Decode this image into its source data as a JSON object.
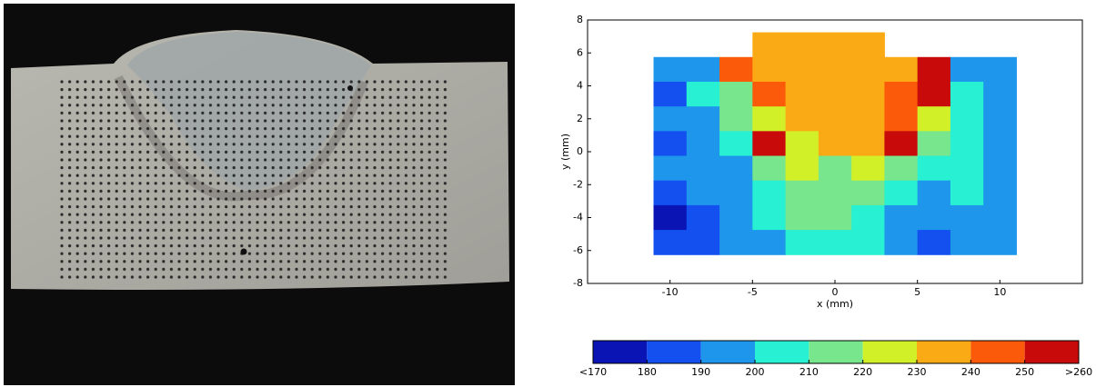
{
  "chart_data": {
    "type": "contour",
    "xlabel": "x (mm)",
    "ylabel": "y (mm)",
    "xlim": [
      -15,
      15
    ],
    "ylim": [
      -8,
      8
    ],
    "xticks": [
      -10,
      -5,
      0,
      5,
      10
    ],
    "yticks": [
      -8,
      -6,
      -4,
      -2,
      0,
      2,
      4,
      6,
      8
    ],
    "x": [
      -10,
      -8,
      -6,
      -4,
      -2,
      0,
      2,
      4,
      6,
      8,
      10
    ],
    "y": [
      6.5,
      5,
      3.5,
      2,
      0.5,
      -1,
      -2.5,
      -4,
      -5.5
    ],
    "z": [
      [
        null,
        null,
        null,
        235,
        235,
        235,
        235,
        null,
        null,
        null,
        null
      ],
      [
        195,
        195,
        245,
        235,
        235,
        232,
        235,
        235,
        255,
        195,
        195
      ],
      [
        188,
        200,
        215,
        245,
        235,
        235,
        235,
        240,
        252,
        205,
        195
      ],
      [
        192,
        195,
        210,
        225,
        235,
        235,
        235,
        242,
        225,
        205,
        198
      ],
      [
        185,
        192,
        205,
        255,
        225,
        235,
        235,
        255,
        215,
        205,
        195
      ],
      [
        190,
        195,
        198,
        215,
        225,
        218,
        225,
        215,
        200,
        205,
        195
      ],
      [
        188,
        195,
        195,
        205,
        215,
        215,
        210,
        200,
        195,
        200,
        192
      ],
      [
        175,
        185,
        192,
        200,
        212,
        210,
        205,
        195,
        192,
        195,
        190
      ],
      [
        185,
        188,
        192,
        195,
        205,
        205,
        200,
        195,
        188,
        190,
        190
      ]
    ],
    "colorbar": {
      "ticks": [
        {
          "value": 170,
          "label": "<170"
        },
        180,
        190,
        200,
        210,
        220,
        230,
        240,
        250,
        {
          "value": 260,
          "label": ">260"
        }
      ],
      "colors": [
        "#0a14b4",
        "#1450f0",
        "#1e96eb",
        "#28f0d2",
        "#78e68c",
        "#d2f028",
        "#faaa14",
        "#fa5a0a",
        "#c80a0a"
      ]
    }
  }
}
